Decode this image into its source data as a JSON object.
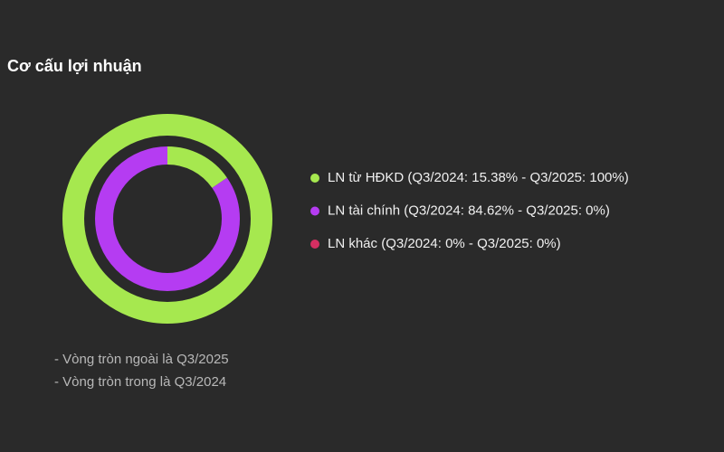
{
  "chart_data": {
    "type": "nested-donut",
    "title": "Cơ cấu lợi nhuận",
    "categories": [
      "LN từ HĐKD (Q3/2024: 15.38% - Q3/2025: 100%)",
      "LN tài chính (Q3/2024: 84.62% - Q3/2025: 0%)",
      "LN khác (Q3/2024: 0% - Q3/2025: 0%)"
    ],
    "colors": [
      "#a6e84f",
      "#b53cf2",
      "#d42f62"
    ],
    "series": [
      {
        "values": [
          100,
          0,
          0
        ]
      },
      {
        "values": [
          15.38,
          84.62,
          0
        ]
      }
    ],
    "notes": [
      "- Vòng tròn ngoài là Q3/2025",
      "- Vòng tròn trong là Q3/2024"
    ]
  }
}
